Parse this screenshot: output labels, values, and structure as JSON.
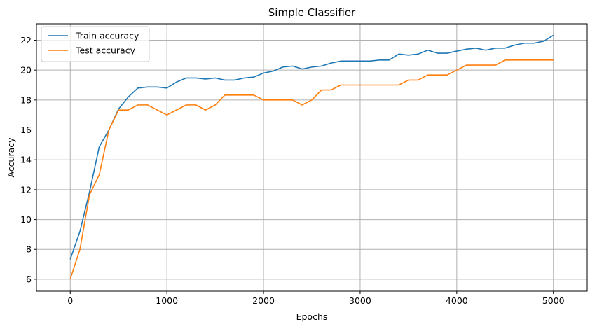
{
  "chart_data": {
    "type": "line",
    "title": "Simple Classifier",
    "xlabel": "Epochs",
    "ylabel": "Accuracy",
    "xlim": [
      -350,
      5350
    ],
    "ylim": [
      5.2,
      23.1
    ],
    "xticks": [
      0,
      1000,
      2000,
      3000,
      4000,
      5000
    ],
    "yticks": [
      6,
      8,
      10,
      12,
      14,
      16,
      18,
      20,
      22
    ],
    "grid": true,
    "legend_position": "top-left",
    "x": [
      0,
      100,
      200,
      300,
      400,
      500,
      600,
      700,
      800,
      900,
      1000,
      1100,
      1200,
      1300,
      1400,
      1500,
      1600,
      1700,
      1800,
      1900,
      2000,
      2100,
      2200,
      2300,
      2400,
      2500,
      2600,
      2700,
      2800,
      2900,
      3000,
      3100,
      3200,
      3300,
      3400,
      3500,
      3600,
      3700,
      3800,
      3900,
      4000,
      4100,
      4200,
      4300,
      4400,
      4500,
      4600,
      4700,
      4800,
      4900,
      5000
    ],
    "series": [
      {
        "name": "Train accuracy",
        "color": "#1f77b4",
        "values": [
          7.33,
          9.2,
          11.87,
          14.87,
          16.0,
          17.4,
          18.2,
          18.8,
          18.87,
          18.87,
          18.8,
          19.2,
          19.47,
          19.47,
          19.4,
          19.47,
          19.33,
          19.33,
          19.47,
          19.53,
          19.8,
          19.93,
          20.2,
          20.27,
          20.07,
          20.2,
          20.27,
          20.47,
          20.6,
          20.6,
          20.6,
          20.6,
          20.67,
          20.67,
          21.07,
          21.0,
          21.07,
          21.33,
          21.13,
          21.13,
          21.27,
          21.4,
          21.47,
          21.33,
          21.47,
          21.47,
          21.67,
          21.8,
          21.8,
          21.93,
          22.33
        ]
      },
      {
        "name": "Test accuracy",
        "color": "#ff7f0e",
        "values": [
          6.0,
          8.0,
          11.67,
          13.0,
          16.0,
          17.33,
          17.33,
          17.67,
          17.67,
          17.33,
          17.0,
          17.33,
          17.67,
          17.67,
          17.33,
          17.67,
          18.33,
          18.33,
          18.33,
          18.33,
          18.0,
          18.0,
          18.0,
          18.0,
          17.67,
          18.0,
          18.67,
          18.67,
          19.0,
          19.0,
          19.0,
          19.0,
          19.0,
          19.0,
          19.0,
          19.33,
          19.33,
          19.67,
          19.67,
          19.67,
          20.0,
          20.33,
          20.33,
          20.33,
          20.33,
          20.67,
          20.67,
          20.67,
          20.67,
          20.67,
          20.67
        ]
      }
    ]
  }
}
